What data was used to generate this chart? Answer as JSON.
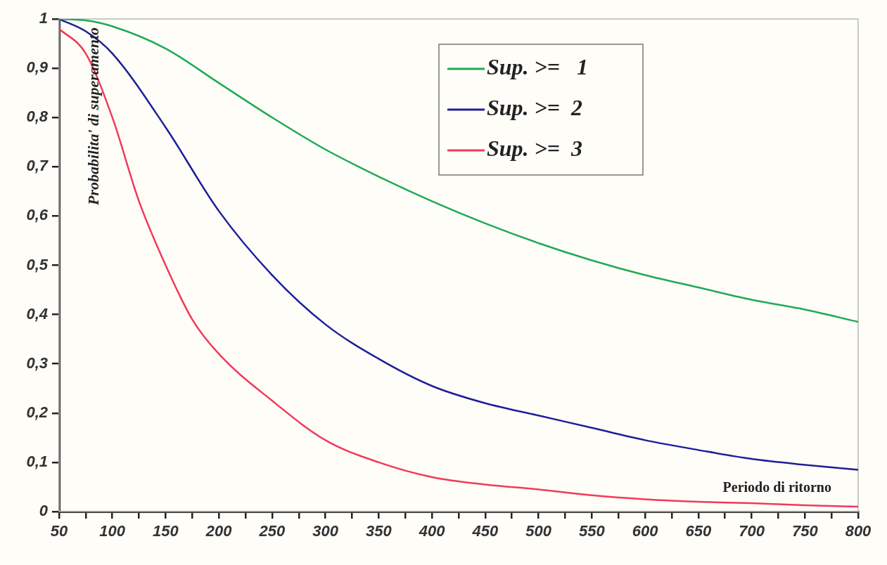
{
  "chart_data": {
    "type": "line",
    "xlabel": "Periodo di ritorno",
    "ylabel": "Probabilita' di superamento",
    "series": [
      {
        "name": "Sup. >=   1",
        "color": "#1faa55",
        "x": [
          50,
          75,
          100,
          150,
          200,
          250,
          300,
          350,
          400,
          450,
          500,
          550,
          600,
          650,
          700,
          750,
          800
        ],
        "values": [
          1,
          0.997,
          0.985,
          0.94,
          0.87,
          0.8,
          0.735,
          0.68,
          0.63,
          0.585,
          0.545,
          0.51,
          0.48,
          0.455,
          0.43,
          0.41,
          0.385
        ]
      },
      {
        "name": "Sup. >=  2",
        "color": "#1c1f9a",
        "x": [
          50,
          75,
          100,
          150,
          200,
          250,
          300,
          350,
          400,
          450,
          500,
          550,
          600,
          650,
          700,
          750,
          800
        ],
        "values": [
          1,
          0.975,
          0.93,
          0.78,
          0.61,
          0.48,
          0.38,
          0.31,
          0.255,
          0.22,
          0.195,
          0.17,
          0.145,
          0.125,
          0.107,
          0.095,
          0.085
        ]
      },
      {
        "name": "Sup. >=  3",
        "color": "#f03a5a",
        "x": [
          50,
          75,
          100,
          125,
          150,
          175,
          200,
          250,
          300,
          350,
          400,
          450,
          500,
          550,
          600,
          650,
          700,
          750,
          800
        ],
        "values": [
          0.98,
          0.93,
          0.8,
          0.63,
          0.5,
          0.39,
          0.32,
          0.225,
          0.145,
          0.1,
          0.07,
          0.055,
          0.045,
          0.033,
          0.025,
          0.02,
          0.017,
          0.013,
          0.01
        ]
      }
    ],
    "xlim": [
      50,
      800
    ],
    "xticks": [
      50,
      {
        "value": 75,
        "label": null
      },
      100,
      {
        "value": 125,
        "label": null
      },
      150,
      {
        "value": 175,
        "label": null
      },
      200,
      {
        "value": 225,
        "label": null
      },
      250,
      {
        "value": 275,
        "label": null
      },
      300,
      {
        "value": 325,
        "label": null
      },
      350,
      {
        "value": 375,
        "label": null
      },
      400,
      {
        "value": 425,
        "label": null
      },
      450,
      {
        "value": 475,
        "label": null
      },
      500,
      {
        "value": 525,
        "label": null
      },
      550,
      {
        "value": 575,
        "label": null
      },
      600,
      {
        "value": 625,
        "label": null
      },
      650,
      {
        "value": 675,
        "label": null
      },
      700,
      {
        "value": 725,
        "label": null
      },
      750,
      {
        "value": 775,
        "label": null
      },
      800
    ],
    "ylim": [
      0,
      1
    ],
    "yticks": [
      0,
      {
        "value": 0.1,
        "label": "0,1"
      },
      {
        "value": 0.2,
        "label": "0,2"
      },
      {
        "value": 0.3,
        "label": "0,3"
      },
      {
        "value": 0.4,
        "label": "0,4"
      },
      {
        "value": 0.5,
        "label": "0,5"
      },
      {
        "value": 0.6,
        "label": "0,6"
      },
      {
        "value": 0.7,
        "label": "0,7"
      },
      {
        "value": 0.8,
        "label": "0,8"
      },
      {
        "value": 0.9,
        "label": "0,9"
      },
      1
    ],
    "grid": false,
    "legend": "top",
    "marker": "none",
    "line_style": "solid"
  }
}
